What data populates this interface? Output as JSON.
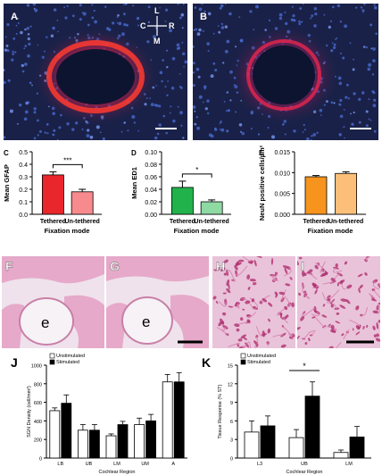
{
  "colors": {
    "fluor_bg": "#1a2148",
    "lesion": "#0c1430",
    "gfap_red": "#e8262c",
    "ed1_green": "#22b24c",
    "neun_orange": "#f7941e",
    "he_pink": "#e6a9c9",
    "bar_black": "#000000"
  },
  "photo_panels": {
    "a": {
      "letter": "A",
      "compass": {
        "top": "L",
        "left": "C",
        "right": "R",
        "bottom": "M"
      }
    },
    "b": {
      "letter": "B"
    },
    "f": {
      "letter": "F",
      "cavity": "e"
    },
    "g": {
      "letter": "G",
      "cavity": "e"
    },
    "h": {
      "letter": "H"
    },
    "i": {
      "letter": "I"
    }
  },
  "chart_data": [
    {
      "id": "c",
      "panel_letter": "C",
      "type": "bar",
      "categories": [
        "Tethered",
        "Un-tethered"
      ],
      "values": [
        0.315,
        0.18
      ],
      "errors": [
        0.025,
        0.02
      ],
      "colors": [
        "#e8262c",
        "#f78a8d"
      ],
      "ylabel": "Mean GFAP",
      "xlabel": "Fixation mode",
      "ylim": [
        0,
        0.5
      ],
      "yticks": [
        "0.0",
        "0.1",
        "0.2",
        "0.3",
        "0.4",
        "0.5"
      ],
      "significance": "***"
    },
    {
      "id": "d",
      "panel_letter": "D",
      "type": "bar",
      "categories": [
        "Tethered",
        "Un-tethered"
      ],
      "values": [
        0.043,
        0.02
      ],
      "errors": [
        0.01,
        0.003
      ],
      "colors": [
        "#22b24c",
        "#8fd9a3"
      ],
      "ylabel": "Mean ED1",
      "xlabel": "Fixation mode",
      "ylim": [
        0,
        0.1
      ],
      "yticks": [
        "0.00",
        "0.02",
        "0.04",
        "0.06",
        "0.08",
        "0.10"
      ],
      "significance": "*"
    },
    {
      "id": "e",
      "panel_letter": "E",
      "type": "bar",
      "categories": [
        "Tethered",
        "Un-tethered"
      ],
      "values": [
        0.009,
        0.0098
      ],
      "errors": [
        0.0003,
        0.0004
      ],
      "colors": [
        "#f7941e",
        "#fbbf7a"
      ],
      "ylabel": "NeuN positive cells/µm²",
      "xlabel": "Fixation mode",
      "ylim": [
        0,
        0.015
      ],
      "yticks": [
        "0.000",
        "0.005",
        "0.010",
        "0.015"
      ]
    },
    {
      "id": "j",
      "panel_letter": "J",
      "type": "bar",
      "categories": [
        "LB",
        "UB",
        "LM",
        "UM",
        "A"
      ],
      "series": [
        {
          "name": "Unstimulated",
          "values": [
            510,
            300,
            240,
            360,
            820
          ],
          "errors": [
            30,
            60,
            20,
            70,
            80
          ]
        },
        {
          "name": "Stimulated",
          "values": [
            590,
            300,
            360,
            400,
            820
          ],
          "errors": [
            90,
            60,
            35,
            70,
            100
          ]
        }
      ],
      "ylabel": "SGN Density (cell/mm²)",
      "xlabel": "Cochlear Region",
      "ylim": [
        0,
        1000
      ],
      "yticks": [
        "0",
        "200",
        "400",
        "600",
        "800",
        "1000"
      ],
      "legend_position": "top-left"
    },
    {
      "id": "k",
      "panel_letter": "K",
      "type": "bar",
      "categories": [
        "L3",
        "UB",
        "LM"
      ],
      "series": [
        {
          "name": "Unstimulated",
          "values": [
            4.2,
            3.3,
            0.9
          ],
          "errors": [
            1.8,
            1.3,
            0.4
          ]
        },
        {
          "name": "Stimulated",
          "values": [
            5.2,
            10.0,
            3.4
          ],
          "errors": [
            1.6,
            2.3,
            1.7
          ]
        }
      ],
      "ylabel": "Tissue Response (% ST)",
      "xlabel": "Cochlear Region",
      "ylim": [
        0,
        15
      ],
      "yticks": [
        "0",
        "3",
        "6",
        "9",
        "12",
        "15"
      ],
      "significance": "*",
      "legend_position": "top-left"
    }
  ]
}
